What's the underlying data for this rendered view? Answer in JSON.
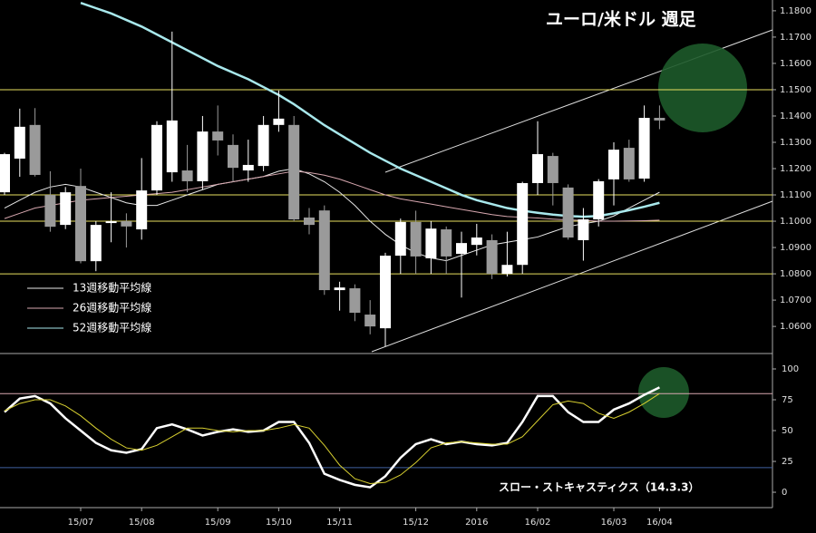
{
  "chart_data": [
    {
      "type": "candlestick",
      "title": "ユーロ/米ドル 週足",
      "open": [
        1.111,
        1.1238,
        1.1366,
        1.11,
        1.0986,
        1.1134,
        1.0848,
        1.0993,
        1.1,
        1.0969,
        1.1117,
        1.1186,
        1.1193,
        1.1152,
        1.1341,
        1.129,
        1.1193,
        1.121,
        1.1366,
        1.1366,
        1.1014,
        1.1041,
        1.0738,
        1.0745,
        1.0645,
        1.0593,
        1.0869,
        1.0997,
        1.0859,
        1.0969,
        1.0876,
        1.091,
        1.0928,
        1.08,
        1.0834,
        1.1145,
        1.1248,
        1.1128,
        1.0928,
        1.1007,
        1.1159,
        1.1279,
        1.1162,
        1.1393
      ],
      "high": [
        1.126,
        1.1428,
        1.143,
        1.119,
        1.113,
        1.12,
        1.1,
        1.111,
        1.103,
        1.124,
        1.138,
        1.1721,
        1.129,
        1.14,
        1.144,
        1.133,
        1.131,
        1.14,
        1.1497,
        1.14,
        1.105,
        1.106,
        1.077,
        1.076,
        1.07,
        1.088,
        1.101,
        1.104,
        1.1,
        1.098,
        1.096,
        1.099,
        1.095,
        1.096,
        1.115,
        1.138,
        1.126,
        1.114,
        1.105,
        1.116,
        1.13,
        1.131,
        1.144,
        1.144
      ],
      "low": [
        1.11,
        1.1169,
        1.117,
        1.096,
        1.097,
        1.084,
        1.081,
        1.092,
        1.09,
        1.093,
        1.11,
        1.115,
        1.111,
        1.112,
        1.125,
        1.115,
        1.115,
        1.119,
        1.134,
        1.1,
        1.095,
        1.072,
        1.066,
        1.062,
        1.057,
        1.0524,
        1.08,
        1.08,
        1.08,
        1.08,
        1.071,
        1.087,
        1.078,
        1.079,
        1.08,
        1.11,
        1.106,
        1.093,
        1.085,
        1.098,
        1.106,
        1.115,
        1.115,
        1.135
      ],
      "close": [
        1.1255,
        1.1359,
        1.1176,
        1.0979,
        1.111,
        1.0848,
        1.0986,
        1.1,
        1.098,
        1.1117,
        1.1366,
        1.1383,
        1.1152,
        1.1341,
        1.1307,
        1.1203,
        1.1214,
        1.1366,
        1.139,
        1.1007,
        1.0986,
        1.0738,
        1.0748,
        1.0652,
        1.06,
        1.0869,
        1.0997,
        1.0866,
        1.0972,
        1.0866,
        1.0917,
        1.0938,
        1.08,
        1.0834,
        1.1145,
        1.1255,
        1.1145,
        1.0938,
        1.1007,
        1.1152,
        1.1272,
        1.1159,
        1.1393,
        1.1383
      ],
      "up_color": "#ffffff",
      "down_color": "#9a9a9a",
      "series": [
        {
          "name": "13週移動平均線",
          "color": "#e8e8e8",
          "values": [
            1.105,
            1.108,
            1.111,
            1.113,
            1.114,
            1.113,
            1.111,
            1.109,
            1.107,
            1.106,
            1.106,
            1.108,
            1.11,
            1.112,
            1.114,
            1.115,
            1.116,
            1.117,
            1.119,
            1.12,
            1.118,
            1.115,
            1.111,
            1.106,
            1.1,
            1.095,
            1.091,
            1.088,
            1.086,
            1.085,
            1.087,
            1.089,
            1.091,
            1.092,
            1.093,
            1.094,
            1.096,
            1.098,
            1.099,
            1.1,
            1.102,
            1.105,
            1.108,
            1.111
          ]
        },
        {
          "name": "26週移動平均線",
          "color": "#d8a8b0",
          "values": [
            1.101,
            1.103,
            1.105,
            1.106,
            1.107,
            1.108,
            1.1085,
            1.109,
            1.1095,
            1.11,
            1.1105,
            1.111,
            1.112,
            1.113,
            1.114,
            1.115,
            1.116,
            1.117,
            1.118,
            1.119,
            1.1185,
            1.1175,
            1.116,
            1.114,
            1.112,
            1.11,
            1.1085,
            1.1075,
            1.1065,
            1.1055,
            1.1045,
            1.1035,
            1.1025,
            1.1018,
            1.1015,
            1.1012,
            1.1008,
            1.1005,
            1.1003,
            1.1,
            1.1,
            1.1001,
            1.1002,
            1.1004
          ]
        },
        {
          "name": "52週移動平均線",
          "color": "#a8e8ec",
          "values": [
            null,
            null,
            null,
            null,
            null,
            1.183,
            1.181,
            1.179,
            1.1765,
            1.174,
            1.171,
            1.168,
            1.165,
            1.162,
            1.159,
            1.1565,
            1.154,
            1.151,
            1.148,
            1.1445,
            1.1405,
            1.1365,
            1.133,
            1.1295,
            1.126,
            1.123,
            1.12,
            1.1175,
            1.115,
            1.1125,
            1.11,
            1.108,
            1.1065,
            1.105,
            1.104,
            1.1032,
            1.1025,
            1.102,
            1.1017,
            1.102,
            1.103,
            1.1042,
            1.1055,
            1.107
          ]
        }
      ],
      "hlines": [
        1.15,
        1.11,
        1.1,
        1.08
      ],
      "hline_color": "#e8e060",
      "ylim": [
        1.0497,
        1.1841
      ],
      "yticks": [
        {
          "value": 1.06,
          "label": "1.0600"
        },
        {
          "value": 1.07,
          "label": "1.0700"
        },
        {
          "value": 1.08,
          "label": "1.0800"
        },
        {
          "value": 1.09,
          "label": "1.0900"
        },
        {
          "value": 1.1,
          "label": "1.1000"
        },
        {
          "value": 1.11,
          "label": "1.1100"
        },
        {
          "value": 1.12,
          "label": "1.1200"
        },
        {
          "value": 1.13,
          "label": "1.1300"
        },
        {
          "value": 1.14,
          "label": "1.1400"
        },
        {
          "value": 1.15,
          "label": "1.1500"
        },
        {
          "value": 1.16,
          "label": "1.1600"
        },
        {
          "value": 1.17,
          "label": "1.1700"
        },
        {
          "value": 1.18,
          "label": "1.1800"
        }
      ]
    },
    {
      "type": "line",
      "title": "スロー・ストキャスティクス（14.3.3）",
      "categories": [
        null,
        null,
        null,
        null,
        null,
        "15/07",
        null,
        null,
        null,
        "15/08",
        null,
        null,
        null,
        null,
        "15/09",
        null,
        null,
        null,
        "15/10",
        null,
        null,
        null,
        "15/11",
        null,
        null,
        null,
        null,
        "15/12",
        null,
        null,
        null,
        "2016",
        null,
        null,
        null,
        "16/02",
        null,
        null,
        null,
        null,
        "16/03",
        null,
        null,
        "16/04"
      ],
      "series": [
        {
          "color": "#ffffff",
          "values": [
            65,
            76,
            78,
            72,
            60,
            50,
            40,
            34,
            32,
            35,
            52,
            55,
            51,
            46,
            49,
            51,
            49,
            50,
            57,
            57,
            40,
            15,
            10,
            6,
            4,
            13,
            28,
            39,
            43,
            39,
            41,
            39,
            38,
            40,
            57,
            78,
            78,
            65,
            57,
            57,
            67,
            72,
            79,
            85
          ]
        },
        {
          "color": "#d8d030",
          "values": [
            66,
            72,
            75,
            75,
            70,
            62,
            52,
            43,
            36,
            34,
            38,
            45,
            52,
            52,
            50,
            49,
            50,
            50,
            52,
            55,
            52,
            38,
            22,
            11,
            7,
            8,
            14,
            24,
            36,
            40,
            41,
            40,
            39,
            39,
            45,
            58,
            71,
            74,
            72,
            64,
            60,
            65,
            72,
            80
          ]
        }
      ],
      "levels": [
        {
          "value": 80,
          "color": "#d8a8b0"
        },
        {
          "value": 20,
          "color": "#4060a0"
        }
      ],
      "ylim": [
        -8.8,
        110.3
      ],
      "yticks": [
        0,
        25,
        50,
        75,
        100
      ]
    }
  ]
}
